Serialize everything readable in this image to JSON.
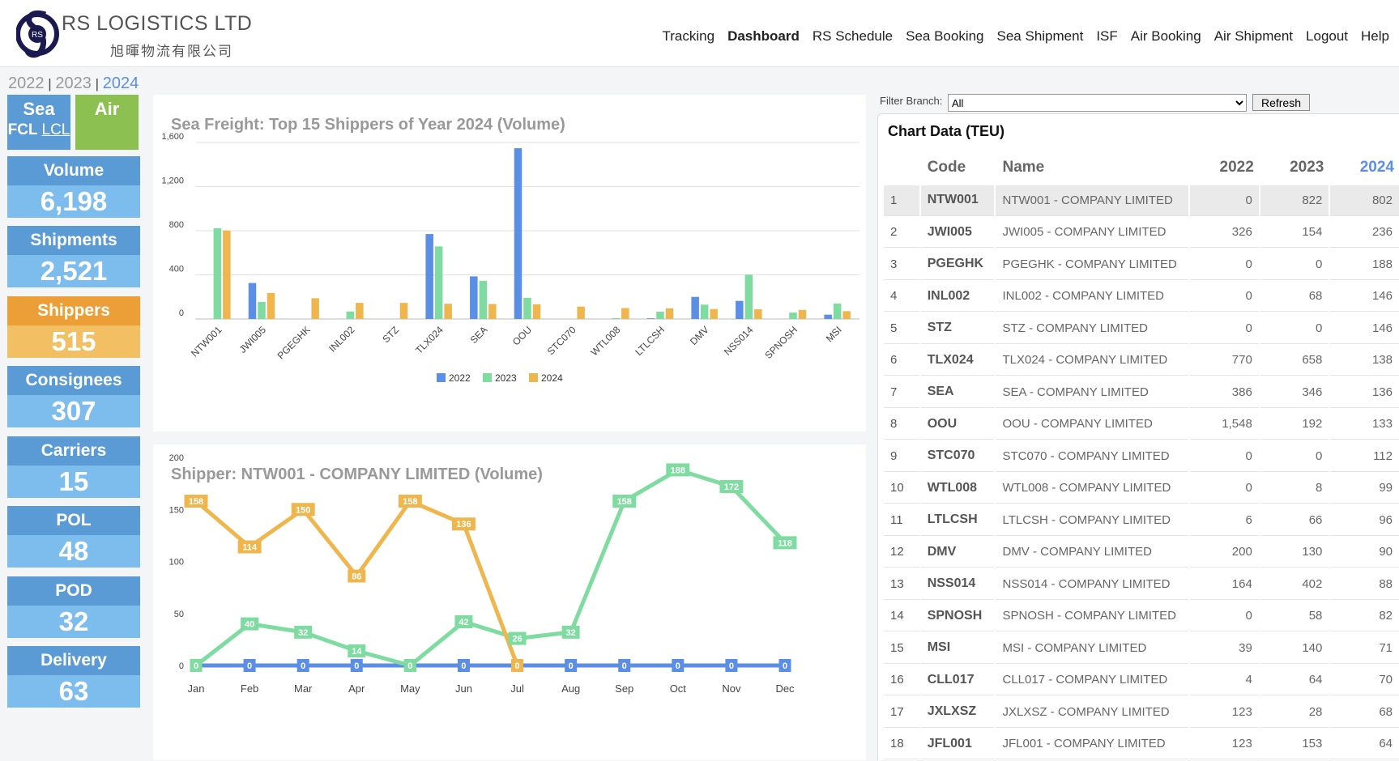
{
  "brand": {
    "name": "RS LOGISTICS LTD",
    "name_zh": "旭暉物流有限公司",
    "logo_letters": "RS"
  },
  "nav": [
    "Tracking",
    "Dashboard",
    "RS Schedule",
    "Sea Booking",
    "Sea Shipment",
    "ISF",
    "Air Booking",
    "Air Shipment",
    "Logout",
    "Help"
  ],
  "nav_active": "Dashboard",
  "years": [
    "2022",
    "2023",
    "2024"
  ],
  "selected_year": "2024",
  "mode": {
    "sea": "Sea",
    "fcl": "FCL",
    "lcl": "LCL",
    "air": "Air"
  },
  "stats": [
    {
      "label": "Volume",
      "value": "6,198"
    },
    {
      "label": "Shipments",
      "value": "2,521"
    },
    {
      "label": "Shippers",
      "value": "515"
    },
    {
      "label": "Consignees",
      "value": "307"
    },
    {
      "label": "Carriers",
      "value": "15"
    },
    {
      "label": "POL",
      "value": "48"
    },
    {
      "label": "POD",
      "value": "32"
    },
    {
      "label": "Delivery",
      "value": "63"
    }
  ],
  "colors": {
    "c2022": "#5b8ee6",
    "c2023": "#7fdca0",
    "c2024": "#f0b64e",
    "stat_blue": "#5b9bd5",
    "stat_orange": "#ec9f36",
    "air_green": "#8cc152"
  },
  "filter": {
    "label": "Filter Branch:",
    "value": "All",
    "button": "Refresh"
  },
  "chart_data": [
    {
      "type": "bar",
      "title": "Sea Freight: Top 15 Shippers of Year 2024 (Volume)",
      "categories": [
        "NTW001",
        "JWI005",
        "PGEGHK",
        "INL002",
        "STZ",
        "TLX024",
        "SEA",
        "OOU",
        "STC070",
        "WTL008",
        "LTLCSH",
        "DMV",
        "NSS014",
        "SPNOSH",
        "MSI"
      ],
      "series": [
        {
          "name": "2022",
          "values": [
            0,
            326,
            0,
            0,
            0,
            770,
            386,
            1548,
            0,
            0,
            6,
            200,
            164,
            0,
            39
          ]
        },
        {
          "name": "2023",
          "values": [
            822,
            154,
            0,
            68,
            0,
            658,
            346,
            192,
            0,
            8,
            66,
            130,
            402,
            58,
            140
          ]
        },
        {
          "name": "2024",
          "values": [
            802,
            236,
            188,
            146,
            146,
            138,
            136,
            133,
            112,
            99,
            96,
            90,
            88,
            82,
            71
          ]
        }
      ],
      "yticks": [
        "0",
        "400",
        "800",
        "1,200",
        "1,600"
      ],
      "ylim": [
        0,
        1600
      ],
      "legend": "bottom"
    },
    {
      "type": "line",
      "title": "Shipper: NTW001 - COMPANY LIMITED (Volume)",
      "categories": [
        "Jan",
        "Feb",
        "Mar",
        "Apr",
        "May",
        "Jun",
        "Jul",
        "Aug",
        "Sep",
        "Oct",
        "Nov",
        "Dec"
      ],
      "series": [
        {
          "name": "2022",
          "values": [
            0,
            0,
            0,
            0,
            0,
            0,
            0,
            0,
            0,
            0,
            0,
            0
          ]
        },
        {
          "name": "2023",
          "values": [
            0,
            40,
            32,
            14,
            0,
            42,
            26,
            32,
            158,
            188,
            172,
            118
          ]
        },
        {
          "name": "2024",
          "values": [
            158,
            114,
            150,
            86,
            158,
            136,
            0,
            null,
            null,
            null,
            null,
            null
          ]
        }
      ],
      "yticks": [
        "0",
        "50",
        "100",
        "150",
        "200"
      ],
      "ylim": [
        0,
        200
      ]
    }
  ],
  "table": {
    "title": "Chart Data (TEU)",
    "headers": [
      "",
      "Code",
      "Name",
      "2022",
      "2023",
      "2024"
    ],
    "rows": [
      [
        "1",
        "NTW001",
        "NTW001 - COMPANY LIMITED",
        "0",
        "822",
        "802"
      ],
      [
        "2",
        "JWI005",
        "JWI005 - COMPANY LIMITED",
        "326",
        "154",
        "236"
      ],
      [
        "3",
        "PGEGHK",
        "PGEGHK - COMPANY LIMITED",
        "0",
        "0",
        "188"
      ],
      [
        "4",
        "INL002",
        "INL002 - COMPANY LIMITED",
        "0",
        "68",
        "146"
      ],
      [
        "5",
        "STZ",
        "STZ - COMPANY LIMITED",
        "0",
        "0",
        "146"
      ],
      [
        "6",
        "TLX024",
        "TLX024 - COMPANY LIMITED",
        "770",
        "658",
        "138"
      ],
      [
        "7",
        "SEA",
        "SEA - COMPANY LIMITED",
        "386",
        "346",
        "136"
      ],
      [
        "8",
        "OOU",
        "OOU - COMPANY LIMITED",
        "1,548",
        "192",
        "133"
      ],
      [
        "9",
        "STC070",
        "STC070 - COMPANY LIMITED",
        "0",
        "0",
        "112"
      ],
      [
        "10",
        "WTL008",
        "WTL008 - COMPANY LIMITED",
        "0",
        "8",
        "99"
      ],
      [
        "11",
        "LTLCSH",
        "LTLCSH - COMPANY LIMITED",
        "6",
        "66",
        "96"
      ],
      [
        "12",
        "DMV",
        "DMV - COMPANY LIMITED",
        "200",
        "130",
        "90"
      ],
      [
        "13",
        "NSS014",
        "NSS014 - COMPANY LIMITED",
        "164",
        "402",
        "88"
      ],
      [
        "14",
        "SPNOSH",
        "SPNOSH - COMPANY LIMITED",
        "0",
        "58",
        "82"
      ],
      [
        "15",
        "MSI",
        "MSI - COMPANY LIMITED",
        "39",
        "140",
        "71"
      ],
      [
        "16",
        "CLL017",
        "CLL017 - COMPANY LIMITED",
        "4",
        "64",
        "70"
      ],
      [
        "17",
        "JXLXSZ",
        "JXLXSZ - COMPANY LIMITED",
        "123",
        "28",
        "68"
      ],
      [
        "18",
        "JFL001",
        "JFL001 - COMPANY LIMITED",
        "123",
        "153",
        "64"
      ]
    ]
  }
}
